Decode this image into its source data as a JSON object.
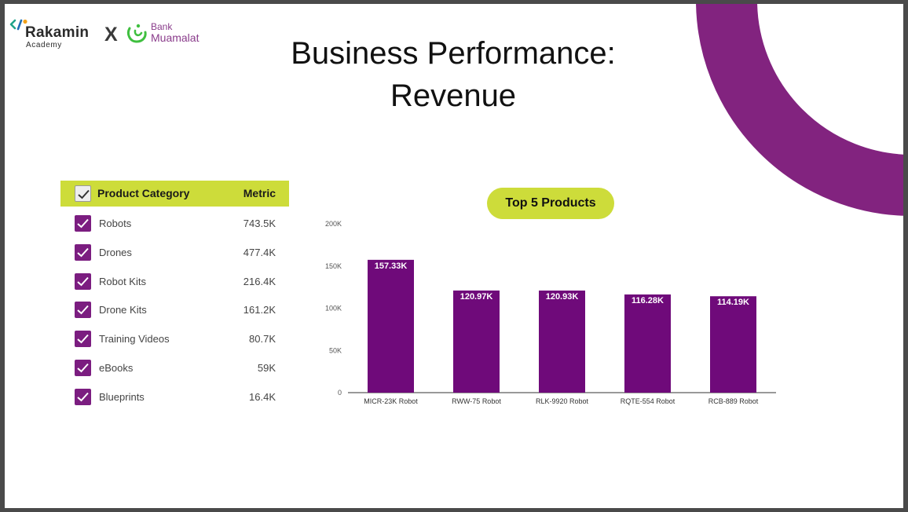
{
  "logos": {
    "rakamin_name": "Rakamin",
    "rakamin_sub": "Academy",
    "separator": "X",
    "bank_small": "Bank",
    "bank_name": "Muamalat"
  },
  "title": {
    "line1": "Business Performance:",
    "line2": "Revenue"
  },
  "table": {
    "header_label": "Product Category",
    "header_metric": "Metric",
    "rows": [
      {
        "label": "Robots",
        "value": "743.5K"
      },
      {
        "label": "Drones",
        "value": "477.4K"
      },
      {
        "label": "Robot Kits",
        "value": "216.4K"
      },
      {
        "label": "Drone Kits",
        "value": "161.2K"
      },
      {
        "label": "Training Videos",
        "value": "80.7K"
      },
      {
        "label": "eBooks",
        "value": "59K"
      },
      {
        "label": "Blueprints",
        "value": "16.4K"
      }
    ]
  },
  "colors": {
    "accent_green": "#cddc3a",
    "brand_purple": "#82237f",
    "bar_purple": "#6f0a7a"
  },
  "chart_data": {
    "type": "bar",
    "title": "Top 5 Products",
    "categories": [
      "MICR-23K Robot",
      "RWW-75 Robot",
      "RLK-9920 Robot",
      "RQTE-554 Robot",
      "RCB-889 Robot"
    ],
    "values": [
      157330,
      120970,
      120930,
      116280,
      114190
    ],
    "data_labels": [
      "157.33K",
      "120.97K",
      "120.93K",
      "116.28K",
      "114.19K"
    ],
    "yticks": [
      0,
      50000,
      100000,
      150000,
      200000
    ],
    "ytick_labels": [
      "0",
      "50K",
      "100K",
      "150K",
      "200K"
    ],
    "ylim": [
      0,
      200000
    ],
    "grid": false,
    "legend": "none"
  }
}
